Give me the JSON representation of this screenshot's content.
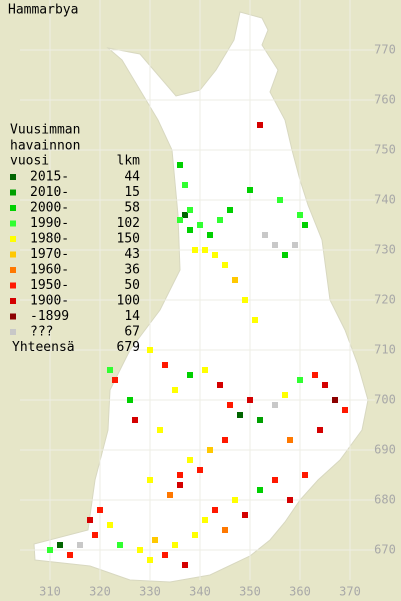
{
  "title": "Hammarbya",
  "legend": {
    "heading": [
      "Vuusimman",
      "havainnon"
    ],
    "col_period": "vuosi",
    "col_count": "lkm",
    "entries": [
      {
        "period": "2015-",
        "count": 44,
        "color": "#006400"
      },
      {
        "period": "2010-",
        "count": 15,
        "color": "#00a000"
      },
      {
        "period": "2000-",
        "count": 58,
        "color": "#00d000"
      },
      {
        "period": "1990-",
        "count": 102,
        "color": "#30ff30"
      },
      {
        "period": "1980-",
        "count": 150,
        "color": "#ffff00"
      },
      {
        "period": "1970-",
        "count": 43,
        "color": "#ffc800"
      },
      {
        "period": "1960-",
        "count": 36,
        "color": "#ff7800"
      },
      {
        "period": "1950-",
        "count": 50,
        "color": "#ff1800"
      },
      {
        "period": "1900-",
        "count": 100,
        "color": "#d40000"
      },
      {
        "period": "-1899",
        "count": 14,
        "color": "#8c0000"
      },
      {
        "period": "???",
        "count": 67,
        "color": "#c8c8c8"
      }
    ],
    "total_label": "Yhteensä",
    "total": 679
  },
  "map": {
    "xlim": [
      300,
      380
    ],
    "ylim": [
      660,
      780
    ],
    "xticks": [
      310,
      320,
      330,
      340,
      350,
      360,
      370
    ],
    "yticks": [
      670,
      680,
      690,
      700,
      710,
      720,
      730,
      740,
      750,
      760,
      770
    ],
    "squares": [
      {
        "x": 337,
        "y": 737,
        "period": "2015-"
      },
      {
        "x": 338,
        "y": 738,
        "period": "1990-"
      },
      {
        "x": 336,
        "y": 736,
        "period": "1990-"
      },
      {
        "x": 338,
        "y": 734,
        "period": "2000-"
      },
      {
        "x": 340,
        "y": 735,
        "period": "1990-"
      },
      {
        "x": 342,
        "y": 733,
        "period": "2000-"
      },
      {
        "x": 344,
        "y": 736,
        "period": "1990-"
      },
      {
        "x": 346,
        "y": 738,
        "period": "2000-"
      },
      {
        "x": 336,
        "y": 747,
        "period": "2000-"
      },
      {
        "x": 337,
        "y": 743,
        "period": "1990-"
      },
      {
        "x": 339,
        "y": 730,
        "period": "1980-"
      },
      {
        "x": 341,
        "y": 730,
        "period": "1980-"
      },
      {
        "x": 343,
        "y": 729,
        "period": "1980-"
      },
      {
        "x": 345,
        "y": 727,
        "period": "1980-"
      },
      {
        "x": 347,
        "y": 724,
        "period": "1970-"
      },
      {
        "x": 349,
        "y": 720,
        "period": "1980-"
      },
      {
        "x": 351,
        "y": 716,
        "period": "1980-"
      },
      {
        "x": 353,
        "y": 733,
        "period": "???"
      },
      {
        "x": 355,
        "y": 731,
        "period": "???"
      },
      {
        "x": 357,
        "y": 729,
        "period": "2000-"
      },
      {
        "x": 359,
        "y": 731,
        "period": "???"
      },
      {
        "x": 360,
        "y": 737,
        "period": "1990-"
      },
      {
        "x": 361,
        "y": 735,
        "period": "2000-"
      },
      {
        "x": 352,
        "y": 755,
        "period": "1900-"
      },
      {
        "x": 356,
        "y": 740,
        "period": "1990-"
      },
      {
        "x": 350,
        "y": 742,
        "period": "2000-"
      },
      {
        "x": 330,
        "y": 710,
        "period": "1980-"
      },
      {
        "x": 333,
        "y": 707,
        "period": "1950-"
      },
      {
        "x": 335,
        "y": 702,
        "period": "1980-"
      },
      {
        "x": 338,
        "y": 705,
        "period": "2000-"
      },
      {
        "x": 341,
        "y": 706,
        "period": "1980-"
      },
      {
        "x": 344,
        "y": 703,
        "period": "1900-"
      },
      {
        "x": 346,
        "y": 699,
        "period": "1950-"
      },
      {
        "x": 348,
        "y": 697,
        "period": "2015-"
      },
      {
        "x": 350,
        "y": 700,
        "period": "1900-"
      },
      {
        "x": 352,
        "y": 696,
        "period": "2010-"
      },
      {
        "x": 355,
        "y": 699,
        "period": "???"
      },
      {
        "x": 357,
        "y": 701,
        "period": "1980-"
      },
      {
        "x": 360,
        "y": 704,
        "period": "1990-"
      },
      {
        "x": 363,
        "y": 705,
        "period": "1950-"
      },
      {
        "x": 365,
        "y": 703,
        "period": "1900-"
      },
      {
        "x": 367,
        "y": 700,
        "period": "-1899"
      },
      {
        "x": 369,
        "y": 698,
        "period": "1950-"
      },
      {
        "x": 364,
        "y": 694,
        "period": "1900-"
      },
      {
        "x": 358,
        "y": 692,
        "period": "1960-"
      },
      {
        "x": 345,
        "y": 692,
        "period": "1950-"
      },
      {
        "x": 342,
        "y": 690,
        "period": "1970-"
      },
      {
        "x": 338,
        "y": 688,
        "period": "1980-"
      },
      {
        "x": 336,
        "y": 685,
        "period": "1950-"
      },
      {
        "x": 332,
        "y": 694,
        "period": "1980-"
      },
      {
        "x": 326,
        "y": 700,
        "period": "2000-"
      },
      {
        "x": 323,
        "y": 704,
        "period": "1950-"
      },
      {
        "x": 322,
        "y": 706,
        "period": "1990-"
      },
      {
        "x": 327,
        "y": 696,
        "period": "1900-"
      },
      {
        "x": 320,
        "y": 678,
        "period": "1950-"
      },
      {
        "x": 318,
        "y": 676,
        "period": "1900-"
      },
      {
        "x": 319,
        "y": 673,
        "period": "1950-"
      },
      {
        "x": 322,
        "y": 675,
        "period": "1980-"
      },
      {
        "x": 324,
        "y": 671,
        "period": "1990-"
      },
      {
        "x": 312,
        "y": 671,
        "period": "2015-"
      },
      {
        "x": 310,
        "y": 670,
        "period": "1990-"
      },
      {
        "x": 314,
        "y": 669,
        "period": "1950-"
      },
      {
        "x": 316,
        "y": 671,
        "period": "???"
      },
      {
        "x": 328,
        "y": 670,
        "period": "1980-"
      },
      {
        "x": 330,
        "y": 668,
        "period": "1980-"
      },
      {
        "x": 331,
        "y": 672,
        "period": "1970-"
      },
      {
        "x": 333,
        "y": 669,
        "period": "1950-"
      },
      {
        "x": 335,
        "y": 671,
        "period": "1980-"
      },
      {
        "x": 337,
        "y": 667,
        "period": "1900-"
      },
      {
        "x": 339,
        "y": 673,
        "period": "1980-"
      },
      {
        "x": 341,
        "y": 676,
        "period": "1980-"
      },
      {
        "x": 343,
        "y": 678,
        "period": "1950-"
      },
      {
        "x": 345,
        "y": 674,
        "period": "1960-"
      },
      {
        "x": 347,
        "y": 680,
        "period": "1980-"
      },
      {
        "x": 349,
        "y": 677,
        "period": "1900-"
      },
      {
        "x": 352,
        "y": 682,
        "period": "2000-"
      },
      {
        "x": 355,
        "y": 684,
        "period": "1950-"
      },
      {
        "x": 358,
        "y": 680,
        "period": "1900-"
      },
      {
        "x": 361,
        "y": 685,
        "period": "1950-"
      },
      {
        "x": 334,
        "y": 681,
        "period": "1960-"
      },
      {
        "x": 336,
        "y": 683,
        "period": "1900-"
      },
      {
        "x": 340,
        "y": 686,
        "period": "1950-"
      },
      {
        "x": 330,
        "y": 684,
        "period": "1980-"
      }
    ]
  }
}
